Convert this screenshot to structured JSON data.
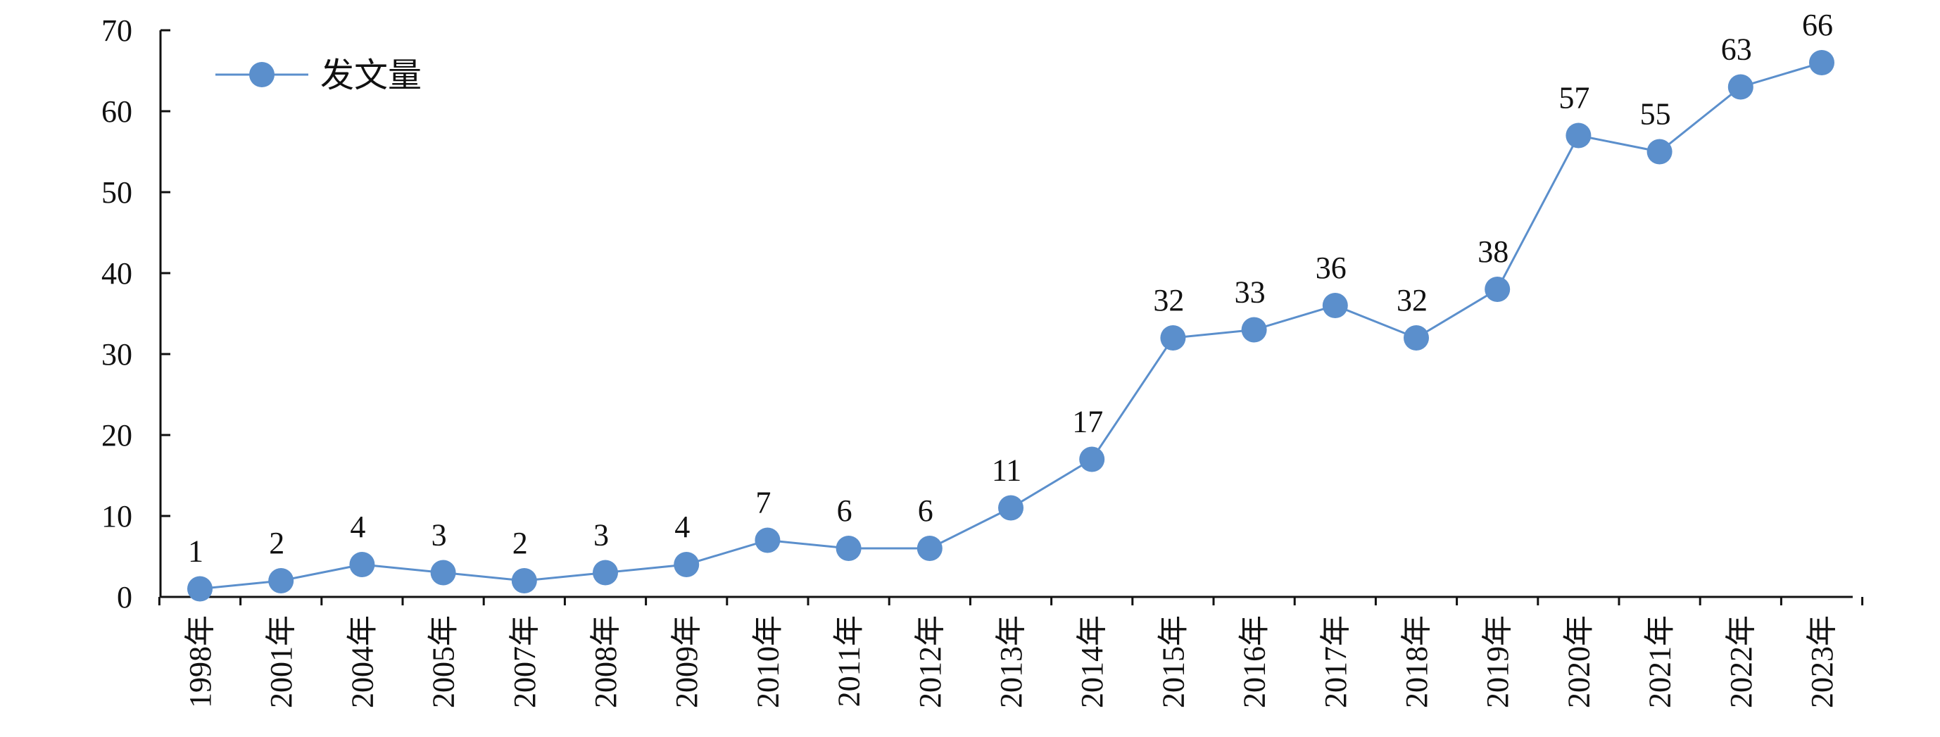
{
  "chart_data": {
    "type": "line",
    "title": "",
    "xlabel": "",
    "ylabel": "",
    "ylim": [
      0,
      70
    ],
    "yticks": [
      0,
      10,
      20,
      30,
      40,
      50,
      60,
      70
    ],
    "grid": false,
    "legend_position": "top-left",
    "categories": [
      "1998年",
      "2001年",
      "2004年",
      "2005年",
      "2007年",
      "2008年",
      "2009年",
      "2010年",
      "2011年",
      "2012年",
      "2013年",
      "2014年",
      "2015年",
      "2016年",
      "2017年",
      "2018年",
      "2019年",
      "2020年",
      "2021年",
      "2022年",
      "2023年"
    ],
    "series": [
      {
        "name": "发文量",
        "color": "#5B8FCC",
        "values": [
          1,
          2,
          4,
          3,
          2,
          3,
          4,
          7,
          6,
          6,
          11,
          17,
          32,
          33,
          36,
          32,
          38,
          57,
          55,
          63,
          66
        ]
      }
    ]
  }
}
